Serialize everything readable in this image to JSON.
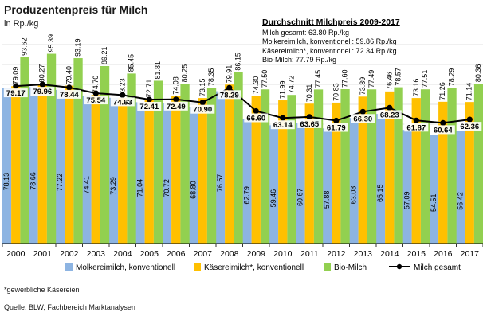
{
  "header": {
    "title": "Produzentenpreis für Milch",
    "unit": "in Rp./kg"
  },
  "average_box": {
    "title": "Durchschnitt Milchpreis 2009-2017",
    "lines": [
      "Milch gesamt: 63.80 Rp./kg",
      "Molkereimilch, konventionell: 59.86 Rp./kg",
      "Käsereimilch*, konventionell: 72.34 Rp./kg",
      "Bio-Milch: 77.79 Rp./kg"
    ]
  },
  "chart_data": {
    "type": "bar",
    "title": "Produzentenpreis für Milch",
    "ylabel": "in Rp./kg",
    "ylim": [
      0,
      100
    ],
    "grid": true,
    "legend_position": "bottom",
    "categories": [
      "2000",
      "2001",
      "2002",
      "2003",
      "2004",
      "2005",
      "2006",
      "2007",
      "2008",
      "2009",
      "2010",
      "2011",
      "2012",
      "2013",
      "2014",
      "2015",
      "2016",
      "2017"
    ],
    "series": [
      {
        "name": "Molkereimilch, konventionell",
        "kind": "bar",
        "color": "#8DB4E2",
        "values": [
          78.13,
          78.66,
          77.22,
          74.41,
          73.29,
          71.04,
          70.72,
          68.8,
          76.57,
          62.79,
          59.46,
          60.67,
          57.88,
          63.08,
          65.15,
          57.09,
          54.51,
          56.42
        ],
        "labels": [
          "78.13",
          "78.66",
          "77.22",
          "74.41",
          "73.29",
          "71.04",
          "70.72",
          "68.80",
          "76.57",
          "62.79",
          "59.46",
          "60.67",
          "57.88",
          "63.08",
          "65.15",
          "57.09",
          "54.51",
          "56.42"
        ]
      },
      {
        "name": "Käsereimilch*, konventionell",
        "kind": "bar",
        "color": "#FFC000",
        "values": [
          79.09,
          80.27,
          79.4,
          74.7,
          73.23,
          72.71,
          74.08,
          73.15,
          79.91,
          74.3,
          71.99,
          70.31,
          70.83,
          73.89,
          76.46,
          73.16,
          71.26,
          71.14
        ],
        "labels": [
          "79.09",
          "80.27",
          "79.40",
          "74.70",
          "73.23",
          "72.71",
          "74.08",
          "73.15",
          "79.91",
          "74.30",
          "71.99",
          "70.31",
          "70.83",
          "73.89",
          "76.46",
          "73.16",
          "71.26",
          "71.14"
        ]
      },
      {
        "name": "Bio-Milch",
        "kind": "bar",
        "color": "#92D050",
        "values": [
          93.62,
          95.39,
          93.19,
          89.21,
          85.45,
          81.81,
          80.25,
          78.35,
          86.15,
          77.5,
          74.72,
          77.45,
          77.6,
          77.49,
          78.57,
          77.51,
          78.29,
          80.36
        ],
        "labels": [
          "93.62",
          "95.39",
          "93.19",
          "89.21",
          "85.45",
          "81.81",
          "80.25",
          "78.35",
          "86.15",
          "77.50",
          "74.72",
          "77.45",
          "77.60",
          "77.49",
          "78.57",
          "77.51",
          "78.29",
          "80.36"
        ]
      },
      {
        "name": "Milch gesamt",
        "kind": "line",
        "color": "#000000",
        "values": [
          79.17,
          79.96,
          78.44,
          75.54,
          74.63,
          72.41,
          72.49,
          70.9,
          78.29,
          66.6,
          63.14,
          63.65,
          61.79,
          66.3,
          68.23,
          61.87,
          60.64,
          62.36
        ],
        "labels": [
          "79.17",
          "79.96",
          "78.44",
          "75.54",
          "74.63",
          "72.41",
          "72.49",
          "70.90",
          "78.29",
          "66.60",
          "63.14",
          "63.65",
          "61.79",
          "66.30",
          "68.23",
          "61.87",
          "60.64",
          "62.36"
        ]
      }
    ]
  },
  "footer": {
    "footnote": "*gewerbliche Käsereien",
    "source": "Quelle: BLW, Fachbereich Marktanalysen"
  }
}
